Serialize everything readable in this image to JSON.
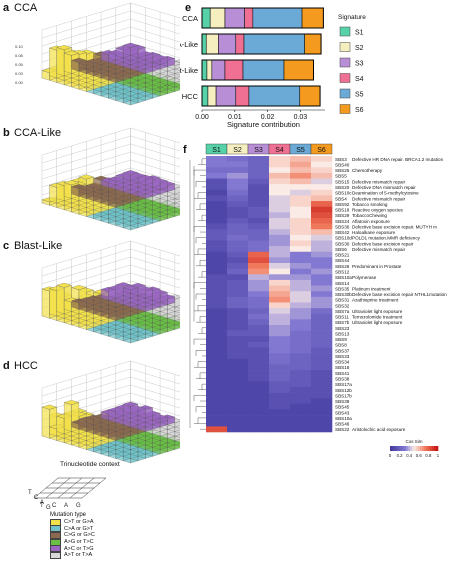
{
  "panels": {
    "a": {
      "letter": "a",
      "title": "CCA",
      "zticks": [
        "0.00",
        "0.03",
        "0.05",
        "0.08",
        "0.10"
      ]
    },
    "b": {
      "letter": "b",
      "title": "CCA-Like"
    },
    "c": {
      "letter": "c",
      "title": "Blast-Like"
    },
    "d": {
      "letter": "d",
      "title": "HCC"
    },
    "e": {
      "letter": "e"
    },
    "f": {
      "letter": "f"
    }
  },
  "legend_3d": {
    "trinucleotide_title": "Trinucleotide context",
    "left_bases": [
      "T",
      "C",
      "A",
      "G"
    ],
    "right_bases": [
      "T",
      "C",
      "A",
      "G"
    ],
    "mutation_title": "Mutation type",
    "mutation_types": [
      {
        "label": "C>T or G>A",
        "color": "#f2e14c"
      },
      {
        "label": "C>A or G>T",
        "color": "#6fc3c9"
      },
      {
        "label": "C>G or G>C",
        "color": "#8c6a4f"
      },
      {
        "label": "A>G or T>C",
        "color": "#6abf45"
      },
      {
        "label": "A>C or T>G",
        "color": "#9a66c2"
      },
      {
        "label": "A>T or T>A",
        "color": "#d8d8d8"
      }
    ]
  },
  "chart_data": [
    {
      "type": "bar",
      "orientation": "horizontal",
      "stacked": true,
      "categories": [
        "CCA",
        "CCA-Like",
        "Blast-Like",
        "HCC"
      ],
      "series": [
        {
          "name": "S1",
          "color": "#57d1a8",
          "values": [
            0.0025,
            0.0013,
            0.0015,
            0.0018
          ]
        },
        {
          "name": "S2",
          "color": "#f5efc0",
          "values": [
            0.0045,
            0.0037,
            0.0015,
            0.0025
          ]
        },
        {
          "name": "S3",
          "color": "#b88fd6",
          "values": [
            0.006,
            0.0053,
            0.004,
            0.006
          ]
        },
        {
          "name": "S4",
          "color": "#f07093",
          "values": [
            0.0025,
            0.0025,
            0.0055,
            0.004
          ]
        },
        {
          "name": "S5",
          "color": "#6ba9d6",
          "values": [
            0.015,
            0.0185,
            0.0125,
            0.0155
          ]
        },
        {
          "name": "S6",
          "color": "#f49a1e",
          "values": [
            0.0065,
            0.005,
            0.009,
            0.0062
          ]
        }
      ],
      "xlabel": "Signature contribution",
      "xticks": [
        0.0,
        0.01,
        0.02,
        0.03
      ],
      "xlim": [
        0,
        0.0375
      ],
      "legend_title": "Signature",
      "legend_position": "right"
    },
    {
      "type": "heatmap",
      "columns": [
        "S1",
        "S2",
        "S3",
        "S4",
        "S5",
        "S6"
      ],
      "column_colors": [
        "#57d1a8",
        "#f5efc0",
        "#b88fd6",
        "#f07093",
        "#6ba9d6",
        "#f49a1e"
      ],
      "rows": [
        {
          "sig": "SBS3",
          "desc": "Defective HR DNA repair. BRCA1.2 mutation",
          "v": [
            0.3,
            0.25,
            0.2,
            0.55,
            0.6,
            0.55
          ]
        },
        {
          "sig": "SBS40",
          "desc": "",
          "v": [
            0.3,
            0.3,
            0.2,
            0.55,
            0.65,
            0.5
          ]
        },
        {
          "sig": "SBS25",
          "desc": "Chemotherapy",
          "v": [
            0.25,
            0.25,
            0.2,
            0.5,
            0.6,
            0.55
          ]
        },
        {
          "sig": "SBS5",
          "desc": "",
          "v": [
            0.3,
            0.35,
            0.2,
            0.6,
            0.7,
            0.6
          ]
        },
        {
          "sig": "SBS15",
          "desc": "Defective mismatch repair",
          "v": [
            0.1,
            0.3,
            0.15,
            0.55,
            0.6,
            0.45
          ]
        },
        {
          "sig": "SBS20",
          "desc": "Defective DNA mismatch repair",
          "v": [
            0.1,
            0.3,
            0.1,
            0.5,
            0.5,
            0.5
          ]
        },
        {
          "sig": "SBS10c",
          "desc": "Deamination of 5-methylcytosine",
          "v": [
            0.05,
            0.25,
            0.1,
            0.5,
            0.45,
            0.55
          ]
        },
        {
          "sig": "SBS4",
          "desc": "Defective mismatch repair",
          "v": [
            0.1,
            0.2,
            0.1,
            0.45,
            0.55,
            0.6
          ]
        },
        {
          "sig": "SBS92",
          "desc": "Tobacco smoking",
          "v": [
            0.05,
            0.15,
            0.1,
            0.45,
            0.55,
            0.8
          ]
        },
        {
          "sig": "SBS18",
          "desc": "Reactive oxygen species",
          "v": [
            0.05,
            0.1,
            0.15,
            0.45,
            0.5,
            0.9
          ]
        },
        {
          "sig": "SBS29",
          "desc": "TobaccoChewing",
          "v": [
            0.05,
            0.1,
            0.15,
            0.4,
            0.5,
            0.85
          ]
        },
        {
          "sig": "SBS24",
          "desc": "Aflatoxin exposure",
          "v": [
            0.05,
            0.15,
            0.1,
            0.45,
            0.55,
            0.8
          ]
        },
        {
          "sig": "SBS36",
          "desc": "Defective base excision repair. MUTYH m",
          "v": [
            0.1,
            0.2,
            0.15,
            0.45,
            0.55,
            0.75
          ]
        },
        {
          "sig": "SBS42",
          "desc": "Haloalkane exposure",
          "v": [
            0.15,
            0.2,
            0.2,
            0.4,
            0.55,
            0.6
          ]
        },
        {
          "sig": "SBS10d",
          "desc": "POLD1 mutation.MMR deficiency",
          "v": [
            0.15,
            0.25,
            0.2,
            0.35,
            0.5,
            0.45
          ]
        },
        {
          "sig": "SBS30",
          "desc": "Defective base excision repair",
          "v": [
            0.1,
            0.2,
            0.25,
            0.35,
            0.55,
            0.4
          ]
        },
        {
          "sig": "SBS6",
          "desc": "Defective mismatch repair",
          "v": [
            0.1,
            0.2,
            0.25,
            0.4,
            0.5,
            0.4
          ]
        },
        {
          "sig": "SBS21",
          "desc": "",
          "v": [
            0.05,
            0.15,
            0.8,
            0.4,
            0.3,
            0.35
          ]
        },
        {
          "sig": "SBS44",
          "desc": "",
          "v": [
            0.05,
            0.1,
            0.85,
            0.35,
            0.3,
            0.3
          ]
        },
        {
          "sig": "SBS26",
          "desc": "Predominant in Prostate",
          "v": [
            0.05,
            0.15,
            0.75,
            0.45,
            0.35,
            0.3
          ]
        },
        {
          "sig": "SBS12",
          "desc": "",
          "v": [
            0.05,
            0.2,
            0.7,
            0.5,
            0.3,
            0.35
          ]
        },
        {
          "sig": "SBS10a",
          "desc": "Polymerase",
          "v": [
            0.1,
            0.1,
            0.4,
            0.35,
            0.35,
            0.3
          ]
        },
        {
          "sig": "SBS14",
          "desc": "",
          "v": [
            0.1,
            0.15,
            0.35,
            0.55,
            0.4,
            0.3
          ]
        },
        {
          "sig": "SBS35",
          "desc": "Platinum treatment",
          "v": [
            0.1,
            0.15,
            0.35,
            0.6,
            0.4,
            0.35
          ]
        },
        {
          "sig": "SBS30b",
          "desc": "Defective base excision repair NTHL1mutation",
          "v": [
            0.1,
            0.15,
            0.3,
            0.65,
            0.45,
            0.3
          ]
        },
        {
          "sig": "SBS31",
          "desc": "Azathioprine treatment",
          "v": [
            0.1,
            0.2,
            0.25,
            0.7,
            0.45,
            0.35
          ]
        },
        {
          "sig": "SBS32",
          "desc": "",
          "v": [
            0.1,
            0.2,
            0.25,
            0.55,
            0.4,
            0.35
          ]
        },
        {
          "sig": "SBS7a",
          "desc": "Ultraviolet light exposure",
          "v": [
            0.05,
            0.1,
            0.2,
            0.45,
            0.35,
            0.25
          ]
        },
        {
          "sig": "SBS11",
          "desc": "Temozolomide treatment",
          "v": [
            0.05,
            0.1,
            0.25,
            0.4,
            0.35,
            0.2
          ]
        },
        {
          "sig": "SBS7b",
          "desc": "Ultraviolet light exposure",
          "v": [
            0.05,
            0.1,
            0.2,
            0.4,
            0.3,
            0.2
          ]
        },
        {
          "sig": "SBS23",
          "desc": "",
          "v": [
            0.05,
            0.1,
            0.15,
            0.35,
            0.3,
            0.2
          ]
        },
        {
          "sig": "SBS13",
          "desc": "",
          "v": [
            0.05,
            0.15,
            0.15,
            0.35,
            0.25,
            0.2
          ]
        },
        {
          "sig": "SBS9",
          "desc": "",
          "v": [
            0.05,
            0.1,
            0.1,
            0.3,
            0.25,
            0.2
          ]
        },
        {
          "sig": "SBS8",
          "desc": "",
          "v": [
            0.05,
            0.1,
            0.15,
            0.3,
            0.25,
            0.2
          ]
        },
        {
          "sig": "SBS37",
          "desc": "",
          "v": [
            0.05,
            0.1,
            0.1,
            0.3,
            0.25,
            0.15
          ]
        },
        {
          "sig": "SBS33",
          "desc": "",
          "v": [
            0.05,
            0.1,
            0.1,
            0.25,
            0.2,
            0.15
          ]
        },
        {
          "sig": "SBS34",
          "desc": "",
          "v": [
            0.05,
            0.05,
            0.1,
            0.25,
            0.2,
            0.15
          ]
        },
        {
          "sig": "SBS16",
          "desc": "",
          "v": [
            0.05,
            0.05,
            0.1,
            0.2,
            0.2,
            0.15
          ]
        },
        {
          "sig": "SBS41",
          "desc": "",
          "v": [
            0.05,
            0.05,
            0.1,
            0.2,
            0.15,
            0.1
          ]
        },
        {
          "sig": "SBS38",
          "desc": "",
          "v": [
            0.05,
            0.05,
            0.1,
            0.2,
            0.15,
            0.1
          ]
        },
        {
          "sig": "SBS17a",
          "desc": "",
          "v": [
            0.05,
            0.05,
            0.05,
            0.15,
            0.15,
            0.1
          ]
        },
        {
          "sig": "SBS12b",
          "desc": "",
          "v": [
            0.05,
            0.05,
            0.05,
            0.15,
            0.1,
            0.1
          ]
        },
        {
          "sig": "SBS17b",
          "desc": "",
          "v": [
            0.05,
            0.05,
            0.05,
            0.1,
            0.1,
            0.1
          ]
        },
        {
          "sig": "SBS39",
          "desc": "",
          "v": [
            0.05,
            0.05,
            0.05,
            0.1,
            0.1,
            0.05
          ]
        },
        {
          "sig": "SBS45",
          "desc": "",
          "v": [
            0.05,
            0.05,
            0.05,
            0.1,
            0.05,
            0.05
          ]
        },
        {
          "sig": "SBS43",
          "desc": "",
          "v": [
            0.05,
            0.05,
            0.05,
            0.05,
            0.05,
            0.05
          ]
        },
        {
          "sig": "SBS10a",
          "desc": "",
          "v": [
            0.05,
            0.05,
            0.05,
            0.05,
            0.05,
            0.05
          ]
        },
        {
          "sig": "SBS46",
          "desc": "",
          "v": [
            0.05,
            0.05,
            0.05,
            0.05,
            0.05,
            0.05
          ]
        },
        {
          "sig": "SBS22",
          "desc": "Aristolochic acid exposure",
          "v": [
            0.85,
            0.05,
            0.05,
            0.05,
            0.05,
            0.05
          ]
        }
      ],
      "colorbar_title": "Cos Sim",
      "colorbar_ticks": [
        "0",
        "0.2",
        "0.4",
        "0.6",
        "0.8",
        "1"
      ],
      "colorbar_range": [
        0,
        1
      ]
    }
  ]
}
